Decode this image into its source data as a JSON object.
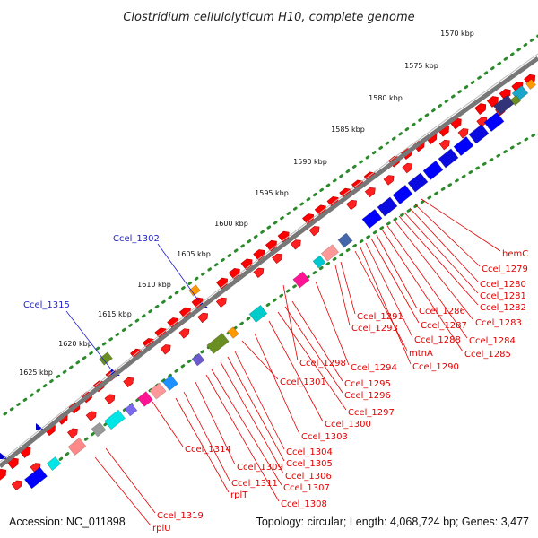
{
  "title": "Clostridium cellulolyticum H10, complete genome",
  "footer": {
    "accession": "Accession: NC_011898",
    "summary": "Topology: circular; Length: 4,068,724 bp; Genes: 3,477"
  },
  "colors": {
    "forward_gene": "#ff0000",
    "gene_label": "#e30000",
    "neg_label": "#2222cc",
    "blue_block": "#0000ff",
    "ruler_dots": "#2a8a2a",
    "backbone": "#888888"
  },
  "ruler_ticks": [
    "1570 kbp",
    "1575 kbp",
    "1580 kbp",
    "1585 kbp",
    "1590 kbp",
    "1595 kbp",
    "1600 kbp",
    "1605 kbp",
    "1610 kbp",
    "1615 kbp",
    "1620 kbp",
    "1625 kbp"
  ],
  "gene_labels": [
    {
      "text": "hemC"
    },
    {
      "text": "Ccel_1279"
    },
    {
      "text": "Ccel_1280"
    },
    {
      "text": "Ccel_1281"
    },
    {
      "text": "Ccel_1282"
    },
    {
      "text": "Ccel_1283"
    },
    {
      "text": "Ccel_1284"
    },
    {
      "text": "Ccel_1285"
    },
    {
      "text": "Ccel_1286"
    },
    {
      "text": "Ccel_1287"
    },
    {
      "text": "Ccel_1288"
    },
    {
      "text": "Ccel_1290"
    },
    {
      "text": "mtnA"
    },
    {
      "text": "Ccel_1291"
    },
    {
      "text": "Ccel_1293"
    },
    {
      "text": "Ccel_1294"
    },
    {
      "text": "Ccel_1298"
    },
    {
      "text": "Ccel_1295"
    },
    {
      "text": "Ccel_1296"
    },
    {
      "text": "Ccel_1297"
    },
    {
      "text": "Ccel_1301"
    },
    {
      "text": "Ccel_1300"
    },
    {
      "text": "Ccel_1303"
    },
    {
      "text": "Ccel_1304"
    },
    {
      "text": "Ccel_1305"
    },
    {
      "text": "Ccel_1306"
    },
    {
      "text": "Ccel_1307"
    },
    {
      "text": "Ccel_1308"
    },
    {
      "text": "Ccel_1309"
    },
    {
      "text": "Ccel_1311"
    },
    {
      "text": "rplT"
    },
    {
      "text": "Ccel_1314"
    },
    {
      "text": "Ccel_1319"
    },
    {
      "text": "rplU"
    }
  ],
  "neg_labels": [
    {
      "text": "Ccel_1302"
    },
    {
      "text": "Ccel_1315"
    }
  ]
}
